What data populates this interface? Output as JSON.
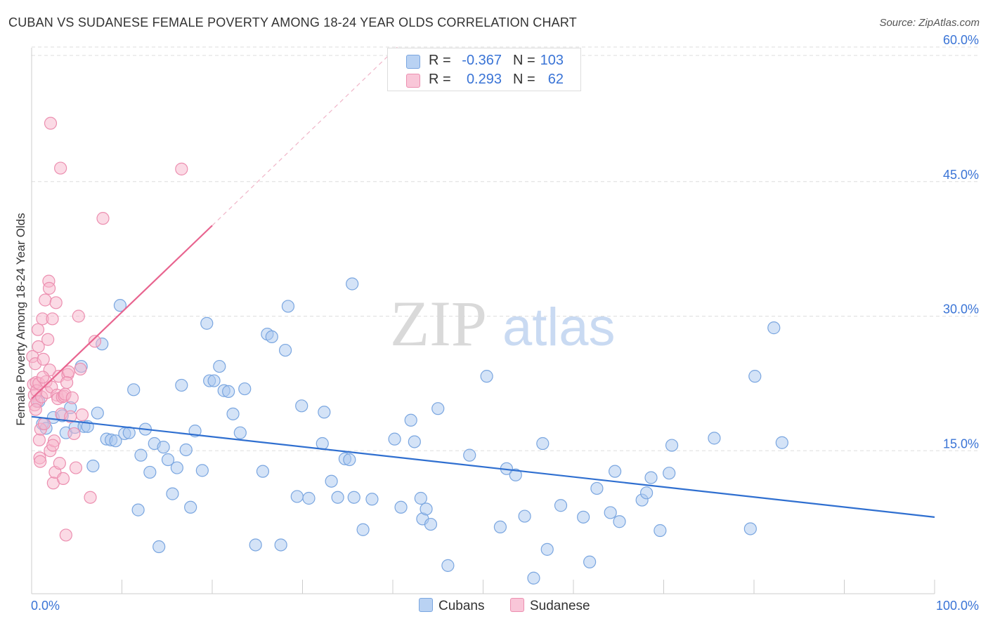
{
  "header": {
    "title": "CUBAN VS SUDANESE FEMALE POVERTY AMONG 18-24 YEAR OLDS CORRELATION CHART",
    "source": "Source: ZipAtlas.com"
  },
  "watermark": {
    "zip": "ZIP",
    "atlas": "atlas"
  },
  "legend_top": {
    "rows": [
      {
        "r_label": "R =",
        "r_value": "-0.367",
        "n_label": "N =",
        "n_value": "103"
      },
      {
        "r_label": "R =",
        "r_value": "0.293",
        "n_label": "N =",
        "n_value": "62"
      }
    ]
  },
  "legend_bottom": {
    "items": [
      "Cubans",
      "Sudanese"
    ]
  },
  "colors": {
    "cubans_fill": "#a9c7f0",
    "cubans_stroke": "#7aa6e0",
    "cubans_line": "#2f6fd0",
    "sudanese_fill": "#f7b6cc",
    "sudanese_stroke": "#ec8fb0",
    "sudanese_line": "#e8648f",
    "tick_label": "#3a74d6",
    "grid": "#dddddd"
  },
  "chart_data": {
    "type": "scatter",
    "title": "CUBAN VS SUDANESE FEMALE POVERTY AMONG 18-24 YEAR OLDS CORRELATION CHART",
    "xlabel": "",
    "ylabel": "Female Poverty Among 18-24 Year Olds",
    "xlim": [
      0,
      100
    ],
    "ylim": [
      0,
      60
    ],
    "x_tick_labels": [
      {
        "value": 0,
        "label": "0.0%"
      },
      {
        "value": 100,
        "label": "100.0%"
      }
    ],
    "y_tick_labels": [
      {
        "value": 15,
        "label": "15.0%"
      },
      {
        "value": 30,
        "label": "30.0%"
      },
      {
        "value": 45,
        "label": "45.0%"
      },
      {
        "value": 60,
        "label": "60.0%"
      }
    ],
    "grid": true,
    "legend_position": "bottom",
    "series": [
      {
        "name": "Cubans",
        "r": -0.367,
        "n": 103,
        "trend": {
          "x": [
            0,
            100
          ],
          "y": [
            18.8,
            7.6
          ]
        },
        "points": [
          [
            0.8,
            20.5
          ],
          [
            1.2,
            18.0
          ],
          [
            1.6,
            17.5
          ],
          [
            2.4,
            18.7
          ],
          [
            3.4,
            18.9
          ],
          [
            3.8,
            17.0
          ],
          [
            4.3,
            19.8
          ],
          [
            4.8,
            17.6
          ],
          [
            5.5,
            24.4
          ],
          [
            5.8,
            17.7
          ],
          [
            6.2,
            17.7
          ],
          [
            6.8,
            13.3
          ],
          [
            7.3,
            19.2
          ],
          [
            7.8,
            26.9
          ],
          [
            8.3,
            16.3
          ],
          [
            8.8,
            16.2
          ],
          [
            9.3,
            16.1
          ],
          [
            9.8,
            31.2
          ],
          [
            10.3,
            16.9
          ],
          [
            10.8,
            17.0
          ],
          [
            11.3,
            21.8
          ],
          [
            11.8,
            8.4
          ],
          [
            12.1,
            14.5
          ],
          [
            12.6,
            17.4
          ],
          [
            13.1,
            12.6
          ],
          [
            13.6,
            15.8
          ],
          [
            14.1,
            4.3
          ],
          [
            14.6,
            15.4
          ],
          [
            15.1,
            14.0
          ],
          [
            15.6,
            10.2
          ],
          [
            16.1,
            13.1
          ],
          [
            16.6,
            22.3
          ],
          [
            17.1,
            15.1
          ],
          [
            17.6,
            8.7
          ],
          [
            18.1,
            17.2
          ],
          [
            18.9,
            12.8
          ],
          [
            19.4,
            29.2
          ],
          [
            19.7,
            22.8
          ],
          [
            20.2,
            22.8
          ],
          [
            20.8,
            24.4
          ],
          [
            21.3,
            21.7
          ],
          [
            21.8,
            21.6
          ],
          [
            22.3,
            19.1
          ],
          [
            23.6,
            21.9
          ],
          [
            23.1,
            17.0
          ],
          [
            24.8,
            4.5
          ],
          [
            25.6,
            12.7
          ],
          [
            26.1,
            28.0
          ],
          [
            26.6,
            27.7
          ],
          [
            27.6,
            4.5
          ],
          [
            28.1,
            26.2
          ],
          [
            28.4,
            31.1
          ],
          [
            29.4,
            9.9
          ],
          [
            29.9,
            20.0
          ],
          [
            30.7,
            9.7
          ],
          [
            32.2,
            15.8
          ],
          [
            32.4,
            19.3
          ],
          [
            33.2,
            11.6
          ],
          [
            33.9,
            9.8
          ],
          [
            34.7,
            14.1
          ],
          [
            35.2,
            14.0
          ],
          [
            35.5,
            33.6
          ],
          [
            35.7,
            9.8
          ],
          [
            36.7,
            6.2
          ],
          [
            37.7,
            9.6
          ],
          [
            40.2,
            16.3
          ],
          [
            40.9,
            8.7
          ],
          [
            42.0,
            18.4
          ],
          [
            42.4,
            16.0
          ],
          [
            43.1,
            9.7
          ],
          [
            43.3,
            7.4
          ],
          [
            43.7,
            8.5
          ],
          [
            44.2,
            6.8
          ],
          [
            45.0,
            19.7
          ],
          [
            46.1,
            2.2
          ],
          [
            48.5,
            14.5
          ],
          [
            50.4,
            23.3
          ],
          [
            51.9,
            6.5
          ],
          [
            52.6,
            13.0
          ],
          [
            53.6,
            12.3
          ],
          [
            54.6,
            7.7
          ],
          [
            55.6,
            0.8
          ],
          [
            56.6,
            15.8
          ],
          [
            57.1,
            4.0
          ],
          [
            58.6,
            8.9
          ],
          [
            61.1,
            7.6
          ],
          [
            61.8,
            2.6
          ],
          [
            62.6,
            10.8
          ],
          [
            64.1,
            8.1
          ],
          [
            64.6,
            12.7
          ],
          [
            65.1,
            7.1
          ],
          [
            67.6,
            9.5
          ],
          [
            68.1,
            10.3
          ],
          [
            68.6,
            12.0
          ],
          [
            69.6,
            6.1
          ],
          [
            70.6,
            12.5
          ],
          [
            70.9,
            15.6
          ],
          [
            75.6,
            16.4
          ],
          [
            79.6,
            6.3
          ],
          [
            80.1,
            23.3
          ],
          [
            82.2,
            28.7
          ],
          [
            83.1,
            15.9
          ]
        ]
      },
      {
        "name": "Sudanese",
        "r": 0.293,
        "n": 62,
        "trend": {
          "x": [
            0,
            20
          ],
          "y": [
            20.8,
            40.1
          ]
        },
        "trend_extension": {
          "x": [
            20,
            40.5
          ],
          "y": [
            40.1,
            60.0
          ]
        },
        "points": [
          [
            0.1,
            25.5
          ],
          [
            0.2,
            22.4
          ],
          [
            0.3,
            21.2
          ],
          [
            0.35,
            20.1
          ],
          [
            0.4,
            24.7
          ],
          [
            0.5,
            22.6
          ],
          [
            0.55,
            21.7
          ],
          [
            0.6,
            20.5
          ],
          [
            0.7,
            28.5
          ],
          [
            0.75,
            26.6
          ],
          [
            0.8,
            22.5
          ],
          [
            0.85,
            16.2
          ],
          [
            0.9,
            14.2
          ],
          [
            0.95,
            13.8
          ],
          [
            1.0,
            17.4
          ],
          [
            1.1,
            21.0
          ],
          [
            1.2,
            29.7
          ],
          [
            1.3,
            25.2
          ],
          [
            1.4,
            18.0
          ],
          [
            1.5,
            31.8
          ],
          [
            1.6,
            22.7
          ],
          [
            1.7,
            21.5
          ],
          [
            1.8,
            27.4
          ],
          [
            1.9,
            33.9
          ],
          [
            1.95,
            33.1
          ],
          [
            2.0,
            24.0
          ],
          [
            2.05,
            15.0
          ],
          [
            2.1,
            51.5
          ],
          [
            2.2,
            22.1
          ],
          [
            2.3,
            29.7
          ],
          [
            2.4,
            11.4
          ],
          [
            2.5,
            16.1
          ],
          [
            2.6,
            12.6
          ],
          [
            2.7,
            31.5
          ],
          [
            2.8,
            21.2
          ],
          [
            2.9,
            20.8
          ],
          [
            3.0,
            23.3
          ],
          [
            3.1,
            13.6
          ],
          [
            3.2,
            46.5
          ],
          [
            3.3,
            19.1
          ],
          [
            3.4,
            21.0
          ],
          [
            3.5,
            11.9
          ],
          [
            3.6,
            21.1
          ],
          [
            3.7,
            21.3
          ],
          [
            3.8,
            5.6
          ],
          [
            4.0,
            23.5
          ],
          [
            4.1,
            23.8
          ],
          [
            4.3,
            18.8
          ],
          [
            4.5,
            20.9
          ],
          [
            4.7,
            16.9
          ],
          [
            4.9,
            13.1
          ],
          [
            5.2,
            30.0
          ],
          [
            5.4,
            24.1
          ],
          [
            5.6,
            19.0
          ],
          [
            6.5,
            9.8
          ],
          [
            7.0,
            27.2
          ],
          [
            7.9,
            40.9
          ],
          [
            16.6,
            46.4
          ],
          [
            0.45,
            19.6
          ],
          [
            1.25,
            23.2
          ],
          [
            2.35,
            15.6
          ],
          [
            3.9,
            22.6
          ]
        ]
      }
    ]
  }
}
